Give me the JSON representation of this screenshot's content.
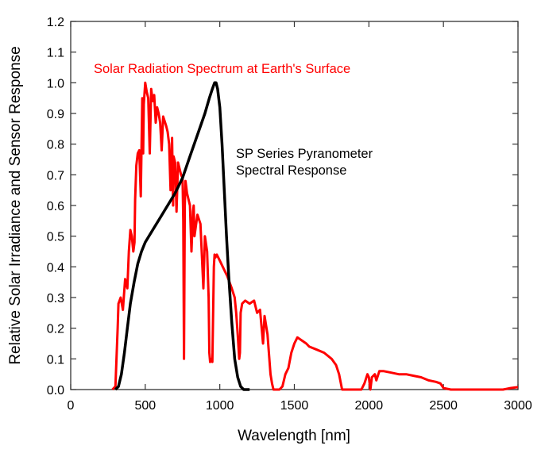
{
  "chart_data": {
    "type": "line",
    "title": "",
    "xlabel": "Wavelength [nm]",
    "ylabel": "Relative Solar Irradiance and Sensor Response",
    "xlim": [
      0,
      3000
    ],
    "ylim": [
      0,
      1.2
    ],
    "xticks": [
      "0",
      "500",
      "1000",
      "1500",
      "2000",
      "2500",
      "3000"
    ],
    "yticks": [
      "0.0",
      "0.1",
      "0.2",
      "0.3",
      "0.4",
      "0.5",
      "0.6",
      "0.7",
      "0.8",
      "0.9",
      "1.0",
      "1.1",
      "1.2"
    ],
    "grid": false,
    "annotations": [
      {
        "text": "Solar Radiation Spectrum at Earth's Surface",
        "color": "#ff0000"
      },
      {
        "text": "SP Series Pyranometer",
        "color": "#000000"
      },
      {
        "text": "Spectral Response",
        "color": "#000000"
      }
    ],
    "series": [
      {
        "color": "#ff0000",
        "x": [
          280,
          300,
          315,
          320,
          335,
          350,
          365,
          380,
          390,
          400,
          410,
          420,
          428,
          432,
          440,
          450,
          460,
          470,
          480,
          486,
          490,
          500,
          510,
          520,
          530,
          540,
          550,
          560,
          570,
          580,
          590,
          600,
          610,
          620,
          640,
          650,
          660,
          670,
          680,
          687,
          690,
          700,
          710,
          720,
          730,
          740,
          750,
          755,
          760,
          765,
          770,
          780,
          800,
          810,
          820,
          825,
          830,
          850,
          870,
          890,
          900,
          915,
          925,
          930,
          935,
          940,
          950,
          960,
          965,
          970,
          980,
          1000,
          1020,
          1050,
          1080,
          1100,
          1110,
          1120,
          1130,
          1135,
          1140,
          1150,
          1170,
          1200,
          1230,
          1250,
          1270,
          1290,
          1300,
          1320,
          1340,
          1350,
          1360,
          1400,
          1420,
          1440,
          1460,
          1480,
          1500,
          1520,
          1550,
          1580,
          1600,
          1650,
          1700,
          1750,
          1780,
          1800,
          1820,
          1900,
          1950,
          1970,
          1990,
          2000,
          2010,
          2020,
          2040,
          2050,
          2070,
          2100,
          2150,
          2200,
          2250,
          2300,
          2350,
          2400,
          2450,
          2480,
          2500,
          2550,
          2600,
          2700,
          2800,
          2900,
          2950,
          3000
        ],
        "y": [
          0,
          0.01,
          0.2,
          0.28,
          0.3,
          0.26,
          0.36,
          0.33,
          0.45,
          0.52,
          0.5,
          0.45,
          0.48,
          0.62,
          0.73,
          0.77,
          0.78,
          0.63,
          0.95,
          0.77,
          0.93,
          1.0,
          0.97,
          0.95,
          0.77,
          0.98,
          0.94,
          0.96,
          0.87,
          0.92,
          0.9,
          0.87,
          0.78,
          0.89,
          0.86,
          0.84,
          0.8,
          0.65,
          0.82,
          0.6,
          0.76,
          0.74,
          0.58,
          0.74,
          0.72,
          0.7,
          0.69,
          0.55,
          0.1,
          0.6,
          0.68,
          0.64,
          0.6,
          0.45,
          0.58,
          0.6,
          0.5,
          0.57,
          0.54,
          0.33,
          0.5,
          0.45,
          0.3,
          0.12,
          0.09,
          0.1,
          0.09,
          0.4,
          0.44,
          0.43,
          0.44,
          0.42,
          0.4,
          0.37,
          0.33,
          0.3,
          0.25,
          0.18,
          0.1,
          0.12,
          0.25,
          0.28,
          0.29,
          0.28,
          0.29,
          0.25,
          0.26,
          0.15,
          0.24,
          0.18,
          0.05,
          0.02,
          0,
          0,
          0.01,
          0.05,
          0.07,
          0.12,
          0.15,
          0.17,
          0.16,
          0.15,
          0.14,
          0.13,
          0.12,
          0.1,
          0.08,
          0.05,
          0,
          0,
          0,
          0.02,
          0.05,
          0.04,
          0,
          0.04,
          0.05,
          0.03,
          0.06,
          0.06,
          0.055,
          0.05,
          0.05,
          0.045,
          0.04,
          0.03,
          0.025,
          0.02,
          0.005,
          0,
          0,
          0,
          0,
          0,
          0.005,
          0.008
        ]
      },
      {
        "color": "#000000",
        "x": [
          300,
          320,
          340,
          360,
          380,
          400,
          425,
          450,
          475,
          500,
          550,
          600,
          650,
          700,
          750,
          800,
          850,
          900,
          930,
          950,
          965,
          975,
          985,
          1000,
          1015,
          1030,
          1045,
          1060,
          1080,
          1100,
          1120,
          1140,
          1160,
          1200
        ],
        "y": [
          0,
          0.01,
          0.05,
          0.12,
          0.2,
          0.28,
          0.35,
          0.41,
          0.45,
          0.48,
          0.52,
          0.56,
          0.6,
          0.64,
          0.69,
          0.76,
          0.83,
          0.9,
          0.95,
          0.98,
          1.0,
          1.0,
          0.98,
          0.92,
          0.8,
          0.65,
          0.5,
          0.37,
          0.22,
          0.1,
          0.04,
          0.01,
          0,
          0
        ]
      }
    ]
  }
}
